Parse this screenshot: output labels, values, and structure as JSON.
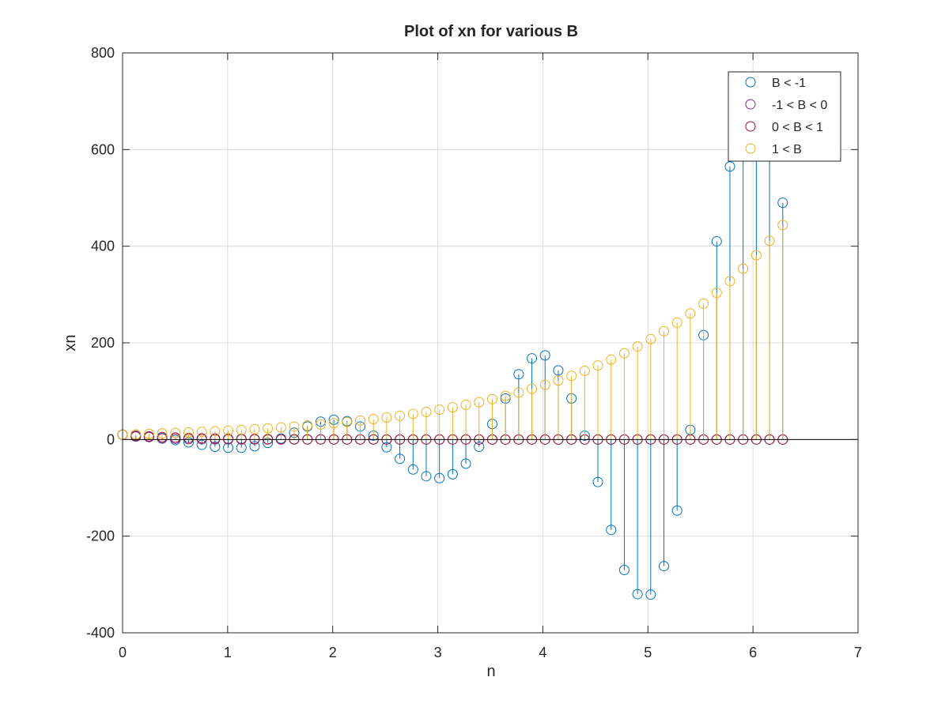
{
  "chart_data": {
    "type": "scatter",
    "subtype": "stem",
    "title": "Plot of xn for various B",
    "xlabel": "n",
    "ylabel": "xn",
    "xlim": [
      0,
      7
    ],
    "ylim": [
      -400,
      800
    ],
    "xticks": [
      0,
      1,
      2,
      3,
      4,
      5,
      6,
      7
    ],
    "yticks": [
      -400,
      -200,
      0,
      200,
      400,
      600,
      800
    ],
    "grid": true,
    "legend_location": "top-right",
    "baseline": 0,
    "marker": "open-circle",
    "x": [
      0,
      0.1257,
      0.2513,
      0.377,
      0.5027,
      0.6283,
      0.754,
      0.8796,
      1.0053,
      1.131,
      1.2566,
      1.3823,
      1.508,
      1.6336,
      1.7593,
      1.885,
      2.0106,
      2.1363,
      2.2619,
      2.3876,
      2.5133,
      2.6389,
      2.7646,
      2.8903,
      3.0159,
      3.1416,
      3.2673,
      3.3929,
      3.5186,
      3.6442,
      3.7699,
      3.8956,
      4.0212,
      4.1469,
      4.2726,
      4.3982,
      4.5239,
      4.6496,
      4.7752,
      4.9009,
      5.0265,
      5.1522,
      5.2779,
      5.4035,
      5.5292,
      5.6549,
      5.7805,
      5.9062,
      6.0319,
      6.1575,
      6.2832
    ],
    "series": [
      {
        "name": "B < -1",
        "color": "#0072bd",
        "values": [
          10,
          7,
          5,
          3,
          -1,
          -6,
          -11,
          -15,
          -17,
          -17,
          -14,
          -7,
          2,
          14,
          27,
          37,
          41,
          38,
          27,
          8,
          -16,
          -40,
          -62,
          -76,
          -80,
          -72,
          -50,
          -15,
          32,
          85,
          135,
          168,
          174,
          143,
          85,
          8,
          -88,
          -187,
          -270,
          -320,
          -321,
          -262,
          -147,
          20,
          216,
          410,
          565,
          656,
          666,
          600,
          490
        ]
      },
      {
        "name": "-1 < B < 0",
        "color": "#7e2f8e",
        "values": [
          10,
          6,
          5,
          2,
          1.5,
          0.8,
          0.5,
          0.3,
          0.2,
          0.1,
          0.05,
          0,
          0,
          0,
          0,
          0,
          0,
          0,
          0,
          0,
          0,
          0,
          0,
          0,
          0,
          0,
          0,
          0,
          0,
          0,
          0,
          0,
          0,
          0,
          0,
          0,
          0,
          0,
          0,
          0,
          0,
          0,
          0,
          0,
          0,
          0,
          0,
          0,
          0,
          0,
          0
        ]
      },
      {
        "name": "0 < B < 1",
        "color": "#a2142f",
        "values": [
          10,
          8,
          6.5,
          5,
          4,
          3.2,
          2.5,
          2,
          1.6,
          1.3,
          1,
          0.8,
          0.6,
          0.5,
          0.4,
          0.3,
          0.2,
          0.2,
          0.1,
          0.1,
          0,
          0,
          0,
          0,
          0,
          0,
          0,
          0,
          0,
          0,
          0,
          0,
          0,
          0,
          0,
          0,
          0,
          0,
          0,
          0,
          0,
          0,
          0,
          0,
          0,
          0,
          0,
          0,
          0,
          0,
          0
        ]
      },
      {
        "name": "1 < B",
        "color": "#edb120",
        "values": [
          10,
          10.8,
          11.6,
          12.6,
          13.6,
          14.6,
          15.8,
          17,
          18.3,
          19.8,
          21.3,
          23,
          24.8,
          26.8,
          28.9,
          31.1,
          33.6,
          36.2,
          39.1,
          42.2,
          45.5,
          49.1,
          53,
          57.2,
          61.7,
          66.5,
          71.8,
          77.4,
          83.5,
          90.1,
          97.2,
          104.9,
          113.2,
          122.1,
          131.7,
          142.1,
          153.3,
          165.4,
          178.5,
          192.5,
          207.7,
          224.1,
          241.8,
          260.9,
          281.4,
          303.6,
          327.6,
          353.4,
          381.3,
          411.3,
          443.8
        ]
      }
    ]
  }
}
